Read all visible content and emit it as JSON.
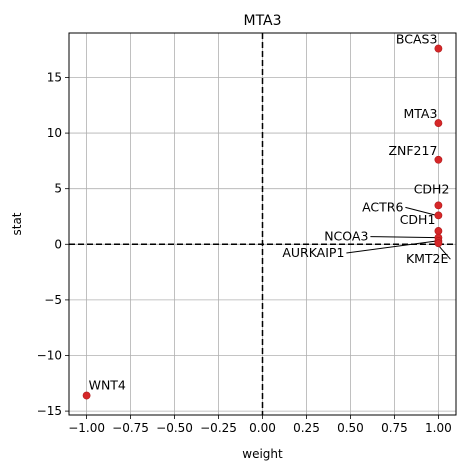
{
  "chart_data": {
    "type": "scatter",
    "title": "MTA3",
    "xlabel": "weight",
    "ylabel": "stat",
    "xlim": [
      -1.1,
      1.1
    ],
    "ylim": [
      -15.35,
      19.0
    ],
    "xticks": [
      -1.0,
      -0.75,
      -0.5,
      -0.25,
      0.0,
      0.25,
      0.5,
      0.75,
      1.0
    ],
    "xtick_labels": [
      "−1.00",
      "−0.75",
      "−0.50",
      "−0.25",
      "0.00",
      "0.25",
      "0.50",
      "0.75",
      "1.00"
    ],
    "yticks": [
      -15,
      -10,
      -5,
      0,
      5,
      10,
      15
    ],
    "ytick_labels": [
      "−15",
      "−10",
      "−5",
      "0",
      "5",
      "10",
      "15"
    ],
    "grid": true,
    "reference_lines": {
      "x": 0,
      "y": 0,
      "style": "dashed",
      "color": "#000000"
    },
    "point_color": "#d62728",
    "points": [
      {
        "label": "BCAS3",
        "x": 1.0,
        "y": 17.6
      },
      {
        "label": "MTA3",
        "x": 1.0,
        "y": 10.9
      },
      {
        "label": "ZNF217",
        "x": 1.0,
        "y": 7.6
      },
      {
        "label": "CDH2",
        "x": 1.0,
        "y": 3.5
      },
      {
        "label": "ACTR6",
        "x": 1.0,
        "y": 2.6
      },
      {
        "label": "CDH1",
        "x": 1.0,
        "y": 1.2
      },
      {
        "label": "NCOA3",
        "x": 1.0,
        "y": 0.6
      },
      {
        "label": "AURKAIP1",
        "x": 1.0,
        "y": 0.3
      },
      {
        "label": "KMT2E",
        "x": 1.0,
        "y": 0.1
      },
      {
        "label": "WNT4",
        "x": -1.0,
        "y": -13.6
      }
    ]
  }
}
